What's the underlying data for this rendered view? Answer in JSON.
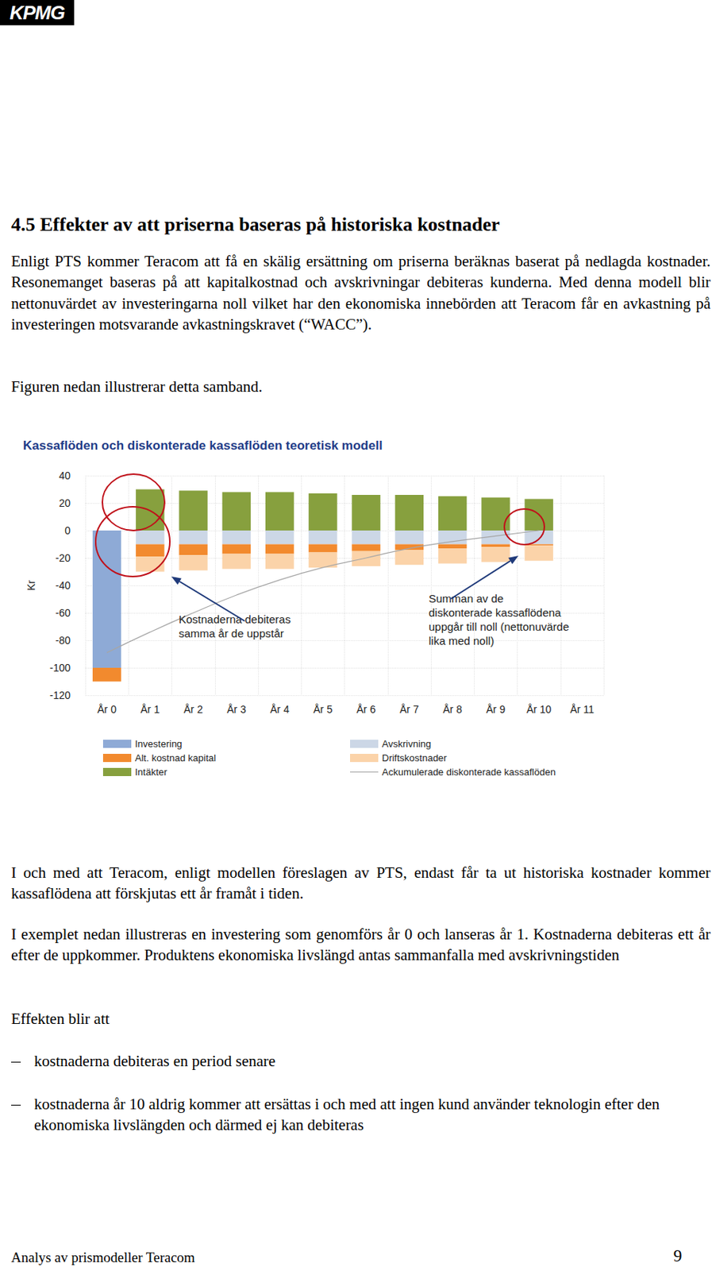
{
  "header": {
    "logo": "KPMG"
  },
  "heading": "4.5 Effekter av att priserna baseras på historiska kostnader",
  "paragraphs_before": [
    "Enligt PTS kommer Teracom att få en skälig ersättning om priserna beräknas baserat på nedlagda kostnader. Resonemanget baseras på att kapitalkostnad och avskrivningar debiteras kunderna. Med denna modell blir nettonuvärdet av investeringarna noll vilket har den ekonomiska innebörden att Teracom får en avkastning på investeringen motsvarande avkastningskravet (“WACC”).",
    "Figuren nedan illustrerar detta samband."
  ],
  "chart_data": {
    "type": "bar",
    "title": "Kassaflöden och diskonterade kassaflöden teoretisk modell",
    "ylabel": "Kr",
    "categories": [
      "År 0",
      "År 1",
      "År 2",
      "År 3",
      "År 4",
      "År 5",
      "År 6",
      "År 7",
      "År 8",
      "År 9",
      "År 10",
      "År 11"
    ],
    "series": [
      {
        "name": "Investering",
        "color": "#8eaad6",
        "values": [
          -100,
          null,
          null,
          null,
          null,
          null,
          null,
          null,
          null,
          null,
          null,
          null
        ]
      },
      {
        "name": "Avskrivning",
        "color": "#ccd7e6",
        "values": [
          null,
          -10,
          -10,
          -10,
          -10,
          -10,
          -10,
          -10,
          -10,
          -10,
          -10,
          null
        ]
      },
      {
        "name": "Alt. kostnad kapital",
        "color": "#f28a2e",
        "values": [
          -10,
          -9,
          -8,
          -7,
          -7,
          -6,
          -5,
          -4,
          -3,
          -2,
          -1,
          null
        ]
      },
      {
        "name": "Driftskostnader",
        "color": "#fbd3a9",
        "values": [
          null,
          -11,
          -11,
          -11,
          -11,
          -11,
          -11,
          -11,
          -11,
          -11,
          -11,
          null
        ]
      },
      {
        "name": "Intäkter",
        "color": "#87a03e",
        "values": [
          null,
          30,
          29,
          28,
          28,
          27,
          26,
          26,
          25,
          24,
          23,
          null
        ]
      },
      {
        "name": "Ackumulerade diskonterade kassaflöden",
        "color": "#a6a6a6",
        "type": "line",
        "line_style": "solid",
        "values": [
          -89,
          -74,
          -60,
          -47,
          -36,
          -27,
          -20,
          -13,
          -8,
          -4,
          0,
          null
        ]
      }
    ],
    "ylim": [
      -120,
      40
    ],
    "yticks": [
      -120,
      -100,
      -80,
      -60,
      -40,
      -20,
      0,
      20,
      40
    ],
    "grid": true,
    "stacked": true,
    "legend": "bottom",
    "annotations": [
      [
        "Kostnaderna debiteras",
        "samma år de uppstår"
      ],
      [
        "Summan av de",
        "diskonterade kassaflödena",
        "uppgår till noll (nettonuvärde",
        "lika med noll)"
      ]
    ]
  },
  "paragraphs_after": [
    "I och med att Teracom, enligt modellen föreslagen av PTS, endast får ta ut historiska kostnader kommer kassaflödena att förskjutas ett år framåt i tiden.",
    "I exemplet nedan illustreras en investering som genomförs år 0 och lanseras år 1. Kostnaderna debiteras ett år efter de uppkommer. Produktens ekonomiska livslängd antas sammanfalla med avskrivningstiden",
    "Effekten blir att"
  ],
  "bullets": [
    "kostnaderna debiteras en period senare",
    "kostnaderna år 10 aldrig kommer att ersättas i och med att ingen kund använder teknologin efter den ekonomiska livslängden och därmed ej kan debiteras"
  ],
  "footer": {
    "text": "Analys av prismodeller Teracom",
    "page": 9
  }
}
